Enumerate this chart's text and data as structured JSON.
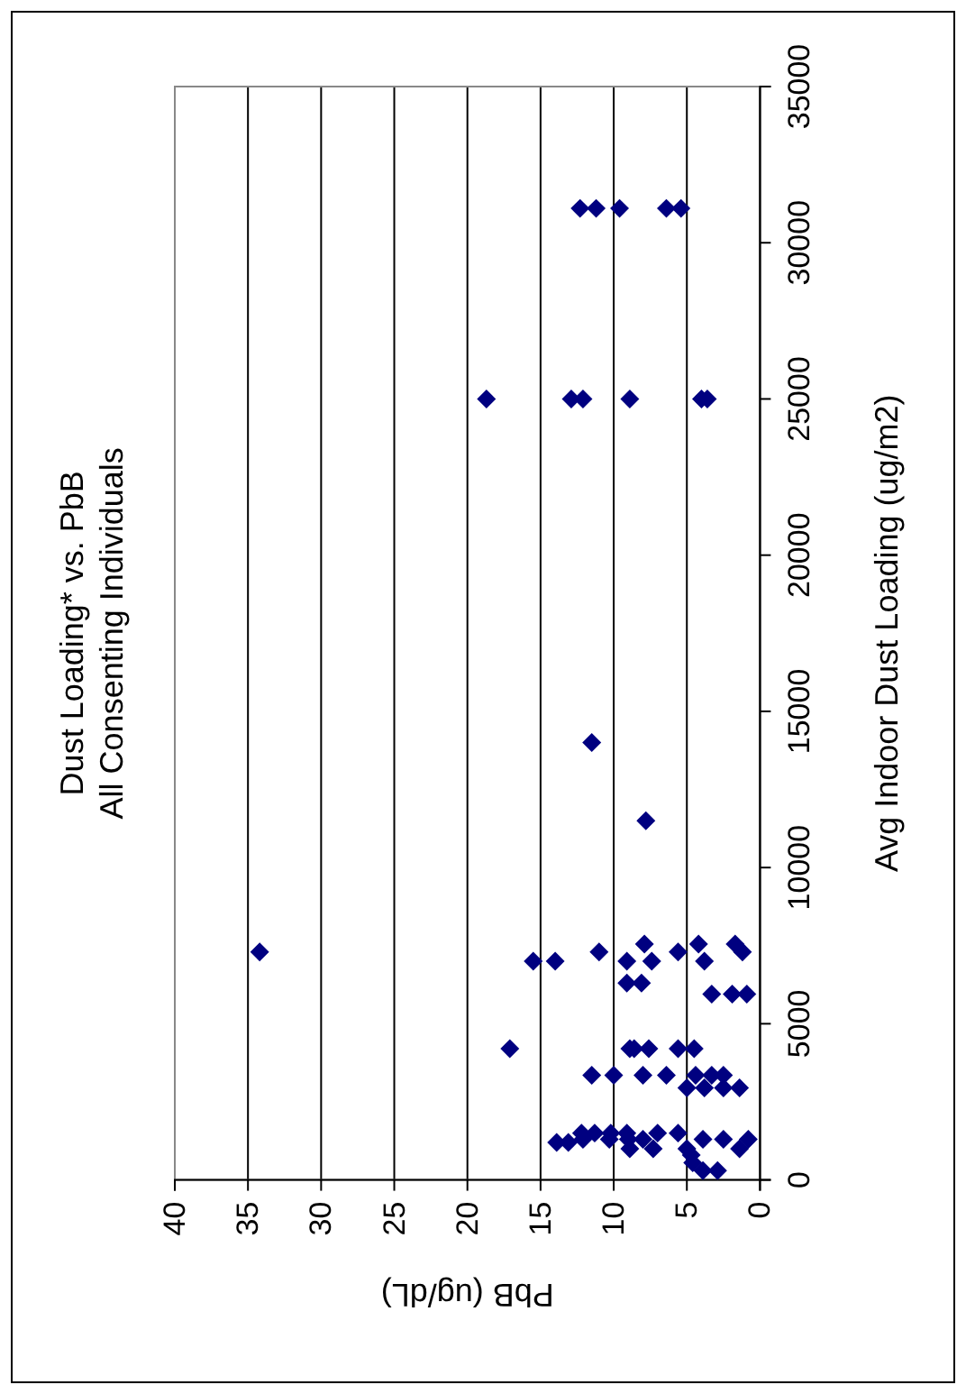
{
  "chart_data": {
    "type": "scatter",
    "title": "Dust Loading* vs. PbB",
    "subtitle": "All Consenting Individuals",
    "xlabel": "PbB (ug/dL)",
    "ylabel": "Avg Indoor Dust Loading (ug/m2)",
    "xlim": [
      40,
      0
    ],
    "xticks": [
      40,
      35,
      30,
      25,
      20,
      15,
      10,
      5,
      0
    ],
    "ylim": [
      0,
      35000
    ],
    "yticks": [
      0,
      5000,
      10000,
      15000,
      20000,
      25000,
      30000,
      35000
    ],
    "grid": "x",
    "marker": "diamond",
    "series": [
      {
        "color": "#000080",
        "x": [
          12.3,
          11.2,
          9.6,
          6.4,
          5.4,
          18.7,
          12.9,
          12.1,
          8.9,
          4.0,
          3.6,
          11.5,
          7.8,
          34.2,
          11.0,
          5.6,
          1.2,
          7.9,
          4.2,
          1.7,
          15.5,
          14.0,
          9.1,
          7.4,
          3.8,
          9.1,
          8.1,
          3.3,
          1.9,
          0.9,
          17.1,
          8.9,
          8.6,
          7.6,
          5.6,
          4.5,
          11.5,
          10.0,
          8.0,
          6.4,
          4.4,
          3.3,
          2.5,
          5.0,
          3.8,
          2.5,
          1.4,
          13.9,
          13.1,
          12.2,
          11.3,
          10.2,
          9.1,
          7.0,
          5.6,
          12.1,
          10.3,
          9.0,
          8.0,
          3.9,
          2.5,
          0.8,
          8.9,
          7.3,
          5.0,
          1.4,
          4.7,
          4.6,
          3.9,
          2.9
        ],
        "values": [
          31100,
          31100,
          31100,
          31100,
          31100,
          25000,
          25000,
          25000,
          25000,
          25000,
          25000,
          14000,
          11500,
          7300,
          7300,
          7300,
          7300,
          7550,
          7550,
          7550,
          7000,
          7000,
          7000,
          7000,
          7000,
          6300,
          6300,
          5950,
          5950,
          5950,
          4200,
          4200,
          4200,
          4200,
          4200,
          4200,
          3350,
          3350,
          3350,
          3350,
          3350,
          3350,
          3350,
          2950,
          2950,
          2950,
          2950,
          1200,
          1200,
          1500,
          1500,
          1500,
          1500,
          1500,
          1500,
          1300,
          1300,
          1300,
          1300,
          1300,
          1300,
          1300,
          1000,
          1000,
          1000,
          1000,
          800,
          550,
          300,
          300
        ]
      }
    ]
  }
}
